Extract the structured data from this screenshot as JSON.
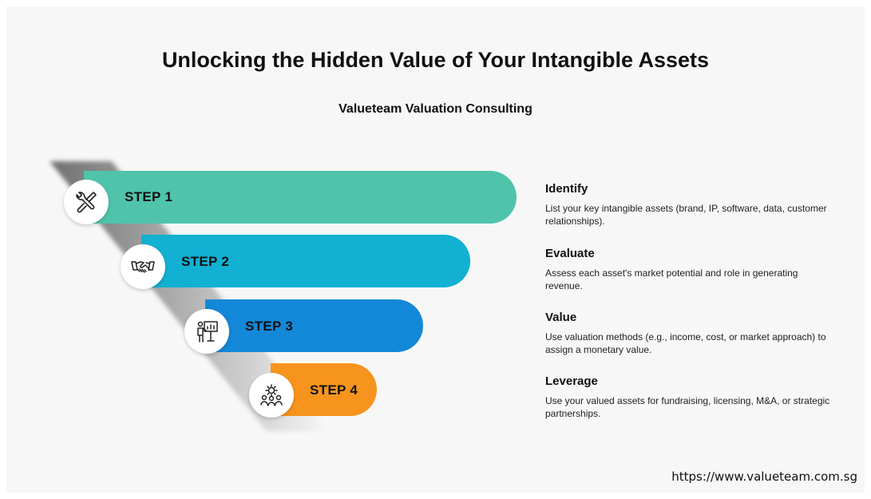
{
  "title": "Unlocking the Hidden Value of Your Intangible Assets",
  "subtitle": "Valueteam Valuation Consulting",
  "steps": [
    {
      "label": "STEP 1",
      "icon": "tools-icon",
      "color": "#4fc4ab",
      "heading": "Identify",
      "description": "List your key intangible assets (brand, IP, software, data, customer relationships)."
    },
    {
      "label": "STEP 2",
      "icon": "handshake-icon",
      "color": "#12b0d2",
      "heading": "Evaluate",
      "description": "Assess each asset's market potential and role in generating revenue."
    },
    {
      "label": "STEP 3",
      "icon": "presentation-icon",
      "color": "#1488d8",
      "heading": "Value",
      "description": "Use valuation methods (e.g., income, cost, or market approach) to assign a monetary value."
    },
    {
      "label": "STEP 4",
      "icon": "team-gear-icon",
      "color": "#f7941e",
      "heading": "Leverage",
      "description": "Use your valued assets for fundraising, licensing, M&A, or strategic partnerships."
    }
  ],
  "footer": {
    "url": "https://www.valueteam.com.sg"
  }
}
